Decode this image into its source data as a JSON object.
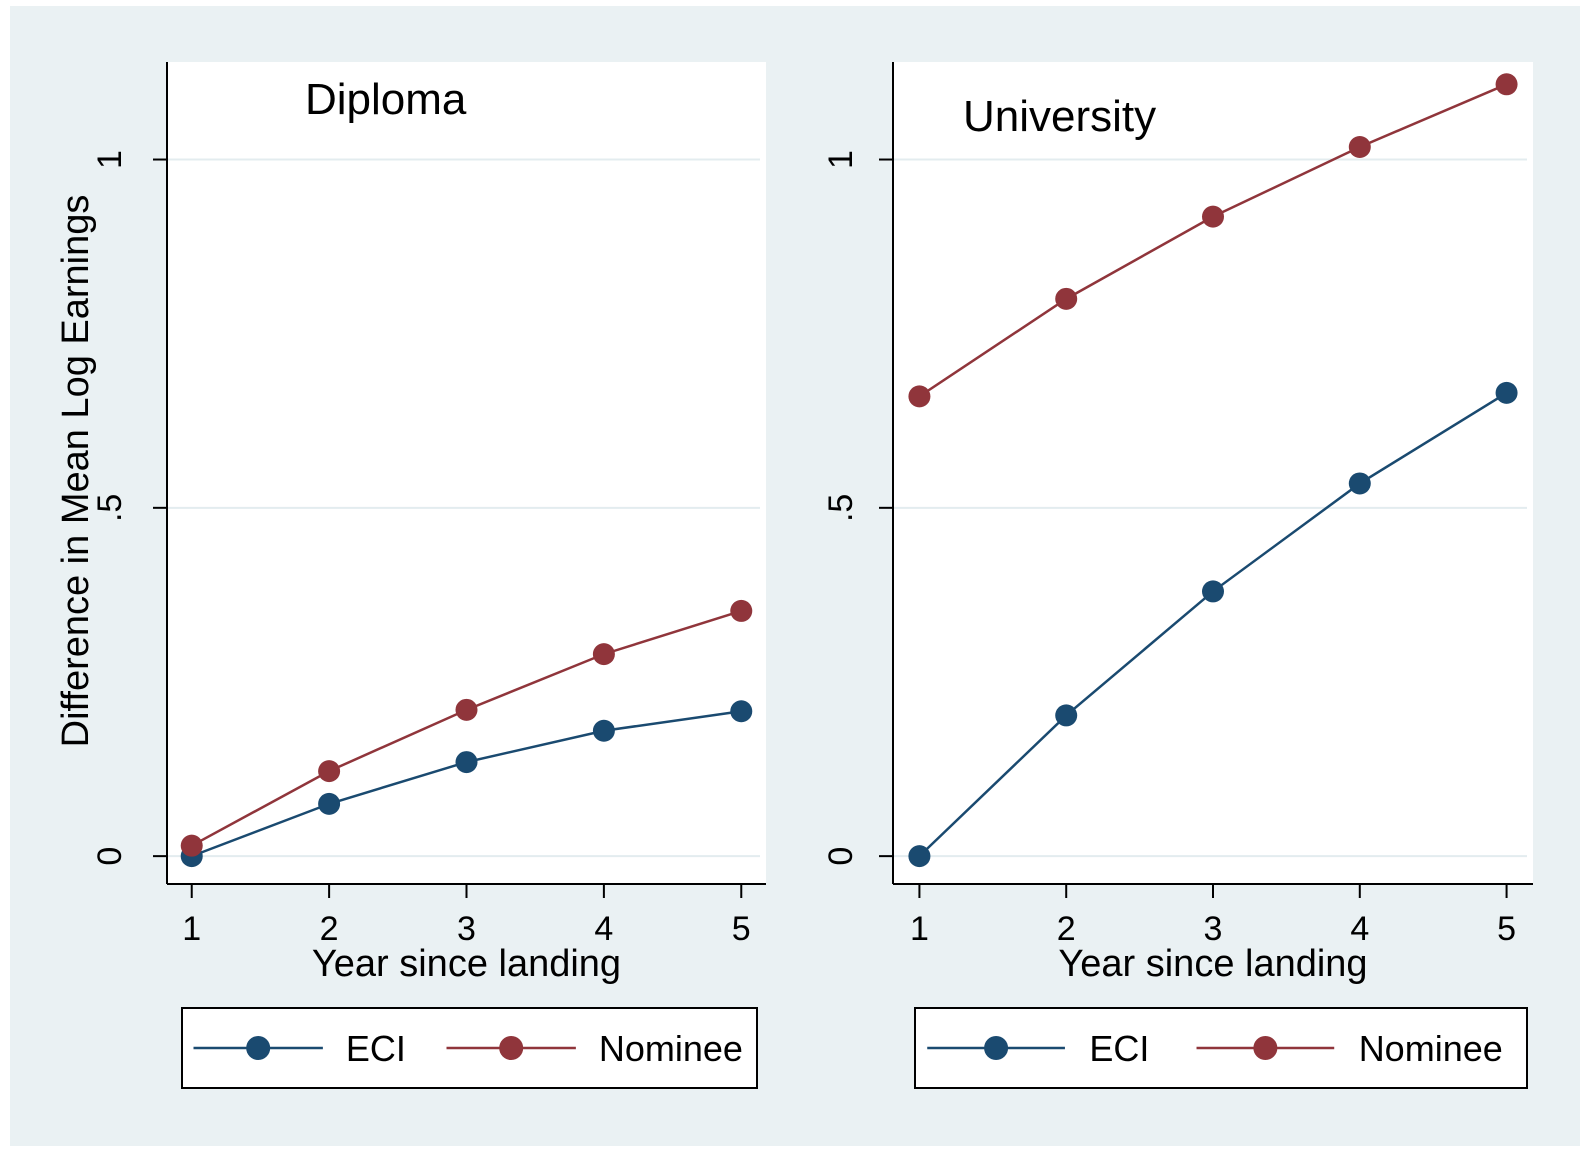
{
  "chart_data": [
    {
      "type": "line",
      "title": "Diploma",
      "xlabel": "Year since landing",
      "ylabel": "Difference in Mean Log Earnings",
      "x": [
        1,
        2,
        3,
        4,
        5
      ],
      "xticks": [
        "1",
        "2",
        "3",
        "4",
        "5"
      ],
      "yticks": [
        {
          "value": 0,
          "label": "0"
        },
        {
          "value": 0.5,
          "label": ".5"
        },
        {
          "value": 1,
          "label": "1"
        }
      ],
      "ylim": [
        -0.04,
        1.14
      ],
      "xlim": [
        0.82,
        5.18
      ],
      "grid": true,
      "legend_position": "bottom",
      "series": [
        {
          "name": "ECI",
          "color": "#1a4a70",
          "values": [
            0.0,
            0.075,
            0.135,
            0.18,
            0.208
          ]
        },
        {
          "name": "Nominee",
          "color": "#90353b",
          "values": [
            0.015,
            0.122,
            0.21,
            0.29,
            0.352
          ]
        }
      ]
    },
    {
      "type": "line",
      "title": "University",
      "xlabel": "Year since landing",
      "ylabel": "",
      "x": [
        1,
        2,
        3,
        4,
        5
      ],
      "xticks": [
        "1",
        "2",
        "3",
        "4",
        "5"
      ],
      "yticks": [
        {
          "value": 0,
          "label": "0"
        },
        {
          "value": 0.5,
          "label": ".5"
        },
        {
          "value": 1,
          "label": "1"
        }
      ],
      "ylim": [
        -0.04,
        1.14
      ],
      "xlim": [
        0.82,
        5.18
      ],
      "grid": true,
      "legend_position": "bottom",
      "series": [
        {
          "name": "ECI",
          "color": "#1a4a70",
          "values": [
            0.0,
            0.202,
            0.38,
            0.535,
            0.665
          ]
        },
        {
          "name": "Nominee",
          "color": "#90353b",
          "values": [
            0.66,
            0.8,
            0.918,
            1.018,
            1.108
          ]
        }
      ]
    }
  ]
}
